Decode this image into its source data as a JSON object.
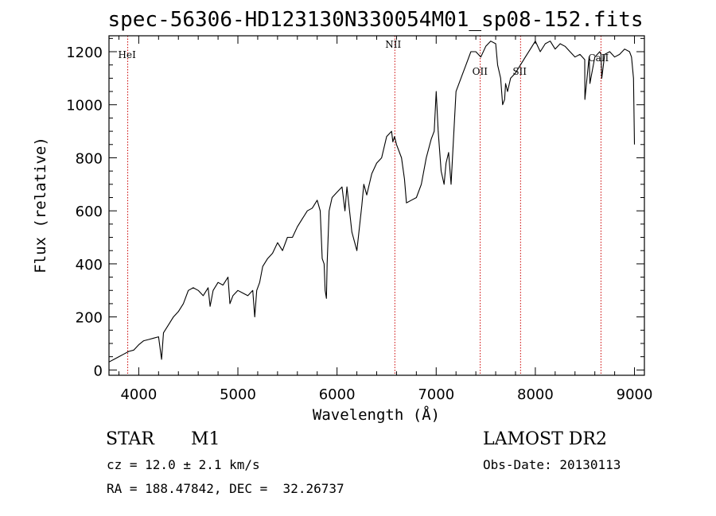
{
  "chart_data": {
    "type": "line",
    "title": "spec-56306-HD123130N330054M01_sp08-152.fits",
    "xlabel": "Wavelength (Å)",
    "ylabel": "Flux (relative)",
    "xlim": [
      3700,
      9100
    ],
    "ylim": [
      -20,
      1260
    ],
    "xticks": [
      4000,
      5000,
      6000,
      7000,
      8000,
      9000
    ],
    "yticks": [
      0,
      200,
      400,
      600,
      800,
      1000,
      1200
    ],
    "grid": false,
    "line_color": "#000000",
    "marker_color": "#cc0000",
    "lines": [
      {
        "label": "HeI",
        "x": 3889
      },
      {
        "label": "NII",
        "x": 6583
      },
      {
        "label": "OII",
        "x": 7444
      },
      {
        "label": "SII",
        "x": 7851
      },
      {
        "label": "CaII",
        "x": 8662
      }
    ],
    "series": [
      {
        "x": [
          3700,
          3750,
          3800,
          3850,
          3900,
          3950,
          4000,
          4050,
          4100,
          4150,
          4200,
          4230,
          4250,
          4300,
          4350,
          4400,
          4450,
          4500,
          4550,
          4600,
          4650,
          4700,
          4720,
          4750,
          4800,
          4850,
          4900,
          4920,
          4950,
          5000,
          5050,
          5100,
          5150,
          5170,
          5190,
          5220,
          5250,
          5300,
          5350,
          5400,
          5450,
          5500,
          5550,
          5600,
          5650,
          5700,
          5750,
          5800,
          5830,
          5850,
          5870,
          5880,
          5893,
          5900,
          5920,
          5950,
          6000,
          6050,
          6080,
          6100,
          6150,
          6200,
          6250,
          6270,
          6300,
          6350,
          6400,
          6450,
          6500,
          6550,
          6563,
          6580,
          6600,
          6650,
          6680,
          6700,
          6750,
          6800,
          6850,
          6900,
          6950,
          6980,
          7000,
          7020,
          7050,
          7080,
          7100,
          7125,
          7150,
          7200,
          7250,
          7300,
          7350,
          7400,
          7450,
          7500,
          7550,
          7600,
          7620,
          7650,
          7670,
          7690,
          7700,
          7720,
          7750,
          7800,
          7850,
          7900,
          7950,
          8000,
          8050,
          8100,
          8150,
          8200,
          8250,
          8300,
          8350,
          8400,
          8450,
          8498,
          8500,
          8542,
          8545,
          8550,
          8600,
          8650,
          8662,
          8670,
          8700,
          8750,
          8800,
          8850,
          8900,
          8950,
          8970,
          8990,
          9000
        ],
        "values": [
          30,
          40,
          50,
          60,
          70,
          75,
          95,
          110,
          115,
          120,
          125,
          40,
          140,
          170,
          200,
          220,
          250,
          300,
          310,
          300,
          280,
          310,
          240,
          300,
          330,
          320,
          350,
          250,
          280,
          300,
          290,
          280,
          300,
          200,
          300,
          330,
          390,
          420,
          440,
          480,
          450,
          500,
          500,
          540,
          570,
          600,
          610,
          640,
          600,
          420,
          400,
          300,
          270,
          400,
          600,
          650,
          670,
          690,
          600,
          690,
          520,
          450,
          620,
          700,
          660,
          740,
          780,
          800,
          880,
          900,
          860,
          880,
          850,
          800,
          720,
          630,
          640,
          650,
          700,
          800,
          870,
          900,
          1050,
          900,
          750,
          700,
          780,
          820,
          700,
          1050,
          1100,
          1150,
          1200,
          1200,
          1180,
          1220,
          1240,
          1230,
          1150,
          1100,
          1000,
          1020,
          1080,
          1050,
          1100,
          1120,
          1150,
          1180,
          1210,
          1240,
          1200,
          1230,
          1240,
          1210,
          1230,
          1220,
          1200,
          1180,
          1190,
          1170,
          1020,
          1180,
          1160,
          1080,
          1180,
          1200,
          1190,
          1100,
          1190,
          1200,
          1180,
          1190,
          1210,
          1200,
          1180,
          1100,
          850
        ]
      }
    ]
  },
  "info": {
    "object_type": "STAR",
    "subclass": "M1",
    "survey": "LAMOST DR2",
    "redshift": "cz = 12.0 ± 2.1 km/s",
    "obs_date": "Obs-Date: 20130113",
    "coords": "RA = 188.47842, DEC =  32.26737"
  }
}
